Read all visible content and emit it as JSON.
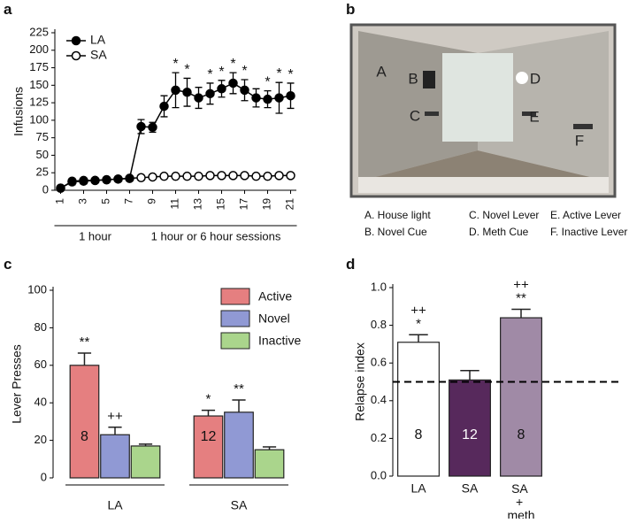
{
  "panels": [
    "a",
    "b",
    "c",
    "d"
  ],
  "photo": {
    "markers": [
      "A",
      "B",
      "C",
      "D",
      "E",
      "F"
    ],
    "legend": [
      "A. House light",
      "B. Novel Cue",
      "C. Novel Lever",
      "D. Meth Cue",
      "E. Active Lever",
      "F. Inactive Lever"
    ]
  },
  "chart_data": [
    {
      "type": "line",
      "ylabel": "Infusions",
      "x": [
        1,
        2,
        3,
        4,
        5,
        6,
        7,
        8,
        9,
        10,
        11,
        12,
        13,
        14,
        15,
        16,
        17,
        18,
        19,
        20,
        21
      ],
      "xlim": [
        0.5,
        21.5
      ],
      "xticks": [
        1,
        3,
        5,
        7,
        9,
        11,
        13,
        15,
        17,
        19,
        21
      ],
      "ylim": [
        0,
        225
      ],
      "yticks": [
        0,
        25,
        50,
        75,
        100,
        125,
        150,
        175,
        200,
        225
      ],
      "legend": "upper left",
      "x_groups": [
        {
          "label": "1 hour",
          "start": 1,
          "end": 7
        },
        {
          "label": "1 hour or 6 hour sessions",
          "start": 8,
          "end": 21
        }
      ],
      "series": [
        {
          "name": "LA",
          "color": "#000000",
          "marker": "filled",
          "values": [
            3,
            12,
            13,
            14,
            15,
            16,
            17,
            91,
            90,
            120,
            143,
            140,
            132,
            138,
            145,
            153,
            143,
            132,
            130,
            132,
            135
          ],
          "errors": [
            2,
            4,
            4,
            3,
            3,
            3,
            3,
            10,
            7,
            15,
            25,
            20,
            15,
            15,
            12,
            15,
            15,
            13,
            12,
            22,
            18
          ],
          "annotations": [
            null,
            null,
            null,
            null,
            null,
            null,
            null,
            null,
            null,
            null,
            "*",
            "*",
            null,
            "*",
            "*",
            "*",
            "*",
            null,
            "*",
            "*",
            "*"
          ]
        },
        {
          "name": "SA",
          "color": "#000000",
          "marker": "open",
          "values": [
            3,
            13,
            14,
            14,
            15,
            16,
            17,
            18,
            19,
            20,
            20,
            20,
            20,
            21,
            21,
            21,
            21,
            20,
            20,
            21,
            21
          ]
        }
      ]
    },
    {
      "type": "bar",
      "ylabel": "Lever Presses",
      "categories": [
        "LA",
        "SA"
      ],
      "ylim": [
        0,
        100
      ],
      "yticks": [
        0,
        20,
        40,
        60,
        80,
        100
      ],
      "legend": "upper right",
      "series": [
        {
          "name": "Active",
          "color": "#e57f80",
          "values": [
            60,
            33
          ],
          "errors": [
            6.5,
            3
          ],
          "annotations": [
            [
              "**"
            ],
            [
              "*"
            ]
          ],
          "n": [
            8,
            12
          ]
        },
        {
          "name": "Novel",
          "color": "#9099d4",
          "values": [
            23,
            35
          ],
          "errors": [
            4,
            6.5
          ],
          "annotations": [
            [
              "++"
            ],
            [
              "**"
            ]
          ]
        },
        {
          "name": "Inactive",
          "color": "#aad58c",
          "values": [
            17,
            15
          ],
          "errors": [
            1,
            1.5
          ]
        }
      ]
    },
    {
      "type": "bar",
      "ylabel": "Relapse index",
      "categories": [
        "LA",
        "SA",
        "SA + meth"
      ],
      "ylim": [
        0,
        1
      ],
      "yticks": [
        {
          "value": 0,
          "label": "0.0"
        },
        {
          "value": 0.2,
          "label": "0.2"
        },
        {
          "value": 0.4,
          "label": "0.4"
        },
        {
          "value": 0.6,
          "label": "0.6"
        },
        {
          "value": 0.8,
          "label": "0.8"
        },
        {
          "value": 1,
          "label": "1.0"
        }
      ],
      "reference_line": 0.5,
      "series": [
        {
          "colors": [
            "#ffffff",
            "#57295c",
            "#a08aa6"
          ],
          "values": [
            0.71,
            0.51,
            0.84
          ],
          "errors": [
            0.04,
            0.05,
            0.045
          ],
          "annotations": [
            [
              "++",
              "*"
            ],
            null,
            [
              "++",
              "**"
            ]
          ],
          "n": [
            8,
            12,
            8
          ]
        }
      ]
    }
  ]
}
